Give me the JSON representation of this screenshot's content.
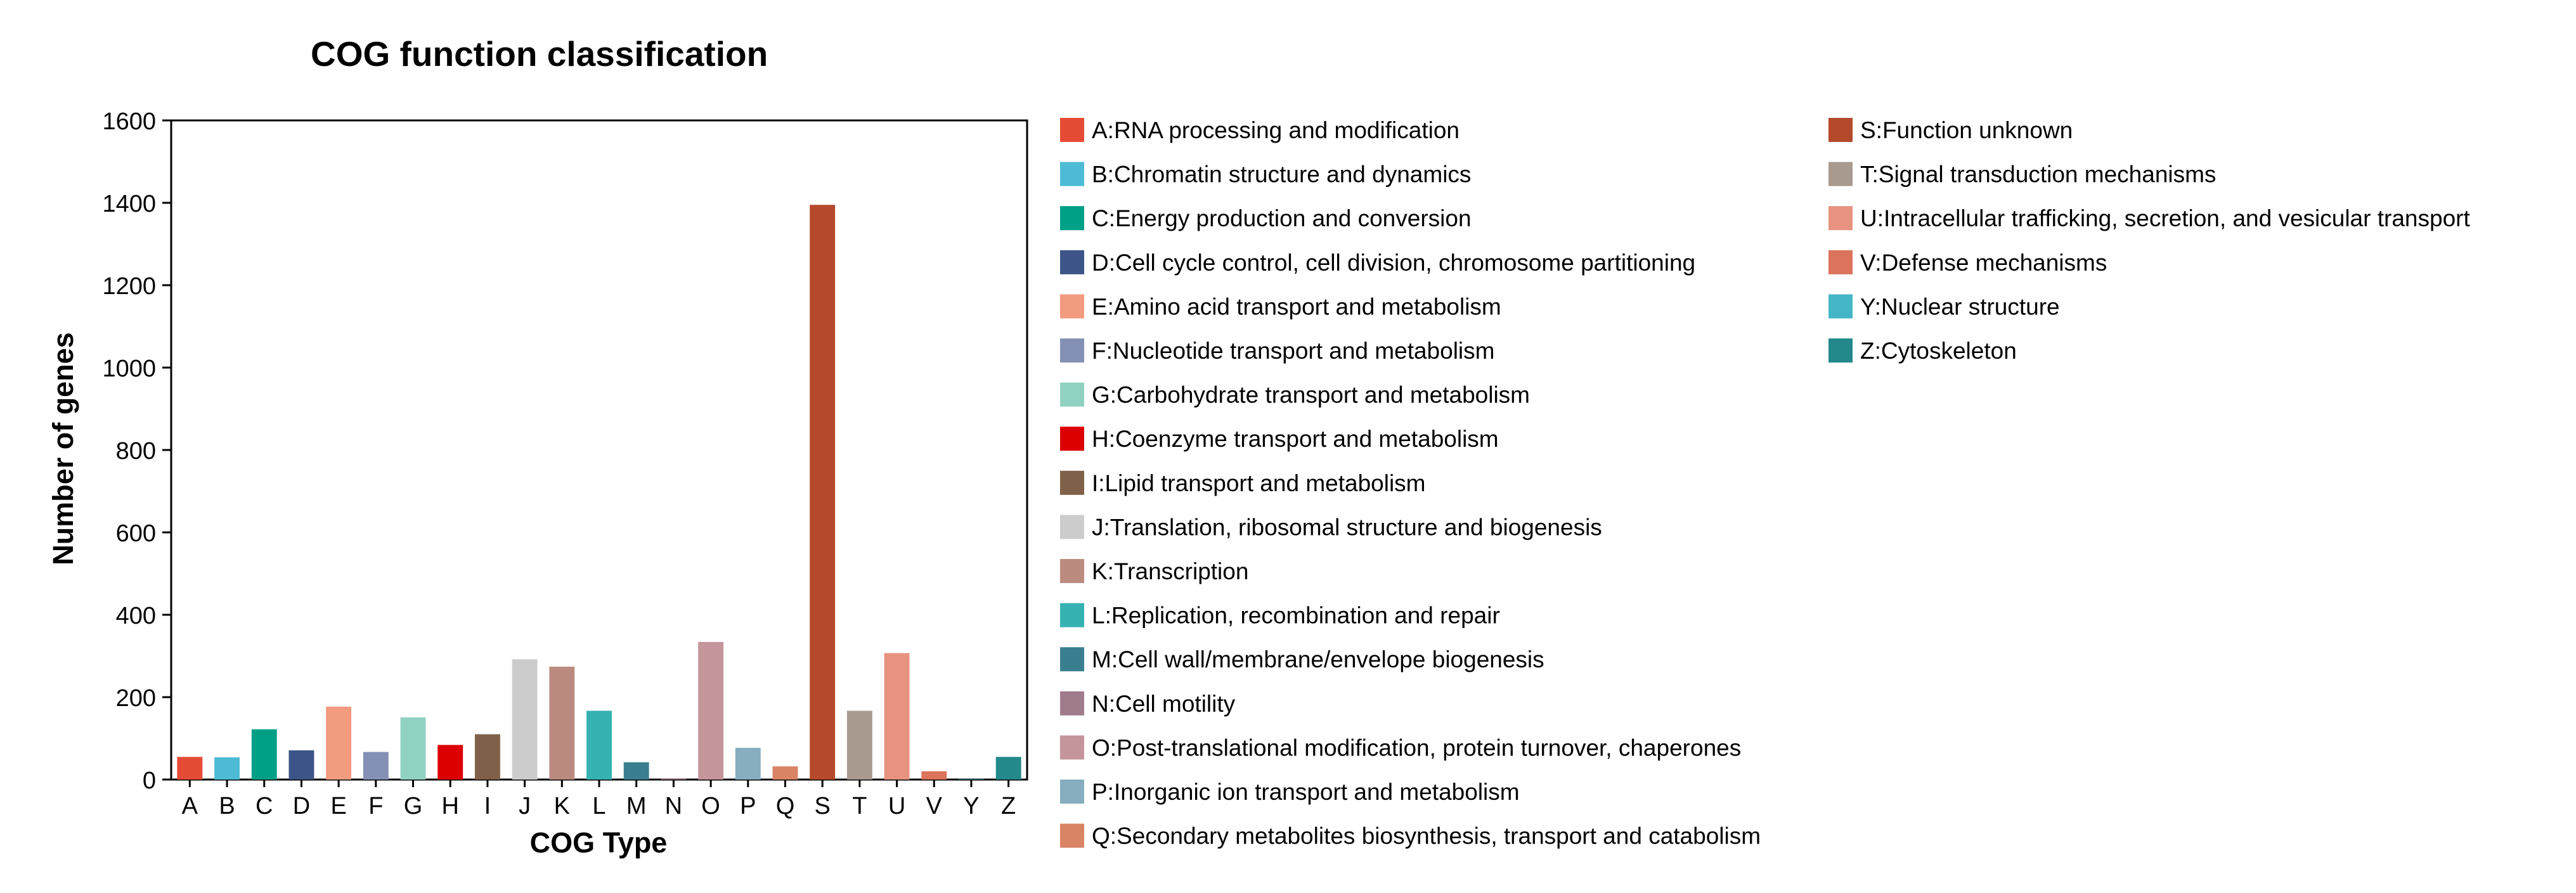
{
  "chart_data": {
    "type": "bar",
    "title": "COG function classification",
    "xlabel": "COG Type",
    "ylabel": "Number of genes",
    "ylim": [
      0,
      1600
    ],
    "yticks": [
      0,
      200,
      400,
      600,
      800,
      1000,
      1200,
      1400,
      1600
    ],
    "grid": false,
    "legend_position": "right",
    "categories": [
      "A",
      "B",
      "C",
      "D",
      "E",
      "F",
      "G",
      "H",
      "I",
      "J",
      "K",
      "L",
      "M",
      "N",
      "O",
      "P",
      "Q",
      "S",
      "T",
      "U",
      "V",
      "Y",
      "Z"
    ],
    "values": [
      55,
      54,
      122,
      71,
      177,
      67,
      151,
      84,
      110,
      292,
      274,
      167,
      42,
      3,
      334,
      77,
      32,
      1395,
      167,
      307,
      20,
      1,
      55
    ],
    "colors": [
      "#e64b35",
      "#4dbbd5",
      "#00a087",
      "#3c5488",
      "#f39b7f",
      "#8491b4",
      "#91d1c2",
      "#dc0000",
      "#7e6148",
      "#cccccc",
      "#bc8b80",
      "#36b2b2",
      "#3a7f8f",
      "#a07b8c",
      "#c4959a",
      "#86aebe",
      "#d98464",
      "#b5492b",
      "#a89a8f",
      "#e8937f",
      "#dc735c",
      "#45b6c8",
      "#23898a"
    ],
    "legend": [
      "A:RNA processing and modification",
      "B:Chromatin structure and dynamics",
      "C:Energy production and conversion",
      "D:Cell cycle control, cell division, chromosome partitioning",
      "E:Amino acid transport and metabolism",
      "F:Nucleotide transport and metabolism",
      "G:Carbohydrate transport and metabolism",
      "H:Coenzyme transport and metabolism",
      "I:Lipid transport and metabolism",
      "J:Translation, ribosomal structure and biogenesis",
      "K:Transcription",
      "L:Replication, recombination and repair",
      "M:Cell wall/membrane/envelope biogenesis",
      "N:Cell motility",
      "O:Post-translational modification, protein turnover, chaperones",
      "P:Inorganic ion transport and metabolism",
      "Q:Secondary metabolites biosynthesis, transport and catabolism",
      "S:Function unknown",
      "T:Signal transduction mechanisms",
      "U:Intracellular trafficking, secretion, and vesicular transport",
      "V:Defense mechanisms",
      "Y:Nuclear structure",
      "Z:Cytoskeleton"
    ]
  }
}
